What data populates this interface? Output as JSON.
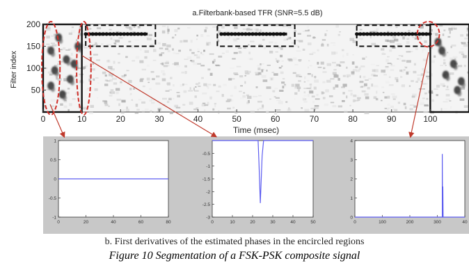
{
  "figure": {
    "caption_b": "b. First derivatives of the estimated phases in the encircled regions",
    "caption_main": "Figure 10 Segmentation of a FSK-PSK composite signal"
  },
  "chart_data": [
    {
      "type": "heatmap",
      "title": "a.Filterbank-based TFR (SNR=5.5 dB)",
      "xlabel": "Time (msec)",
      "ylabel": "Filter index",
      "xlim": [
        0,
        110
      ],
      "ylim": [
        0,
        200
      ],
      "xticks": [
        "0",
        "10",
        "20",
        "30",
        "40",
        "50",
        "60",
        "70",
        "80",
        "90",
        "100"
      ],
      "yticks": [
        "50",
        "100",
        "150",
        "200"
      ],
      "tones": [
        {
          "x": [
            11,
            27
          ],
          "y": 178
        },
        {
          "x": [
            46,
            63
          ],
          "y": 178
        },
        {
          "x": [
            81,
            100
          ],
          "y": 178
        }
      ],
      "psk_blobs": [
        {
          "x": 2,
          "y": 140
        },
        {
          "x": 4,
          "y": 170
        },
        {
          "x": 6,
          "y": 120
        },
        {
          "x": 3,
          "y": 95
        },
        {
          "x": 7,
          "y": 75
        },
        {
          "x": 2,
          "y": 60
        },
        {
          "x": 8,
          "y": 110
        },
        {
          "x": 5,
          "y": 40
        },
        {
          "x": 9,
          "y": 150
        },
        {
          "x": 103,
          "y": 140
        },
        {
          "x": 106,
          "y": 110
        },
        {
          "x": 104,
          "y": 85
        },
        {
          "x": 108,
          "y": 70
        },
        {
          "x": 102,
          "y": 160
        },
        {
          "x": 107,
          "y": 50
        }
      ],
      "segment_boxes": [
        {
          "x": [
            0,
            10
          ],
          "y": [
            0,
            200
          ],
          "style": "solid"
        },
        {
          "x": [
            11,
            29
          ],
          "y": [
            150,
            198
          ],
          "style": "dashed"
        },
        {
          "x": [
            45,
            65
          ],
          "y": [
            150,
            198
          ],
          "style": "dashed"
        },
        {
          "x": [
            81,
            100
          ],
          "y": [
            150,
            198
          ],
          "style": "dashed"
        },
        {
          "x": [
            100,
            110
          ],
          "y": [
            0,
            200
          ],
          "style": "solid"
        }
      ],
      "encircled_regions": [
        {
          "x": [
            0,
            4
          ],
          "y": [
            0,
            200
          ]
        },
        {
          "x": [
            9,
            12
          ],
          "y": [
            0,
            200
          ]
        },
        {
          "x": [
            97,
            102
          ],
          "y": [
            155,
            200
          ]
        }
      ]
    },
    {
      "type": "line",
      "xlim": [
        0,
        80
      ],
      "ylim": [
        -1,
        1
      ],
      "xticks": [
        "0",
        "20",
        "40",
        "60",
        "80"
      ],
      "yticks": [
        "1",
        "0.5",
        "0",
        "-0.5",
        "-1"
      ],
      "series": [
        {
          "x": [
            0,
            80
          ],
          "y": [
            0,
            0
          ],
          "color": "#5c5cf0"
        }
      ]
    },
    {
      "type": "line",
      "xlim": [
        0,
        55
      ],
      "ylim": [
        -3,
        0
      ],
      "xticks": [
        "0",
        "10",
        "20",
        "30",
        "40",
        "50"
      ],
      "yticks": [
        "-0.5",
        "-1",
        "-1.5",
        "-2",
        "-2.5",
        "-3"
      ],
      "series": [
        {
          "x": [
            0,
            25,
            25.5,
            26.2,
            27.2,
            28,
            55
          ],
          "y": [
            0,
            0,
            -0.9,
            -2.45,
            -0.6,
            0,
            0
          ],
          "color": "#5c5cf0"
        }
      ]
    },
    {
      "type": "line",
      "xlim": [
        0,
        400
      ],
      "ylim": [
        0,
        4
      ],
      "xticks": [
        "0",
        "100",
        "200",
        "300",
        "40"
      ],
      "yticks": [
        "4",
        "3",
        "2",
        "1",
        "0"
      ],
      "series": [
        {
          "x": [
            0,
            318,
            318,
            319,
            320,
            320,
            321,
            322,
            322,
            400
          ],
          "y": [
            0,
            0,
            3.3,
            0,
            0,
            1.6,
            0,
            0,
            0,
            0
          ],
          "color": "#5c5cf0"
        }
      ]
    }
  ]
}
